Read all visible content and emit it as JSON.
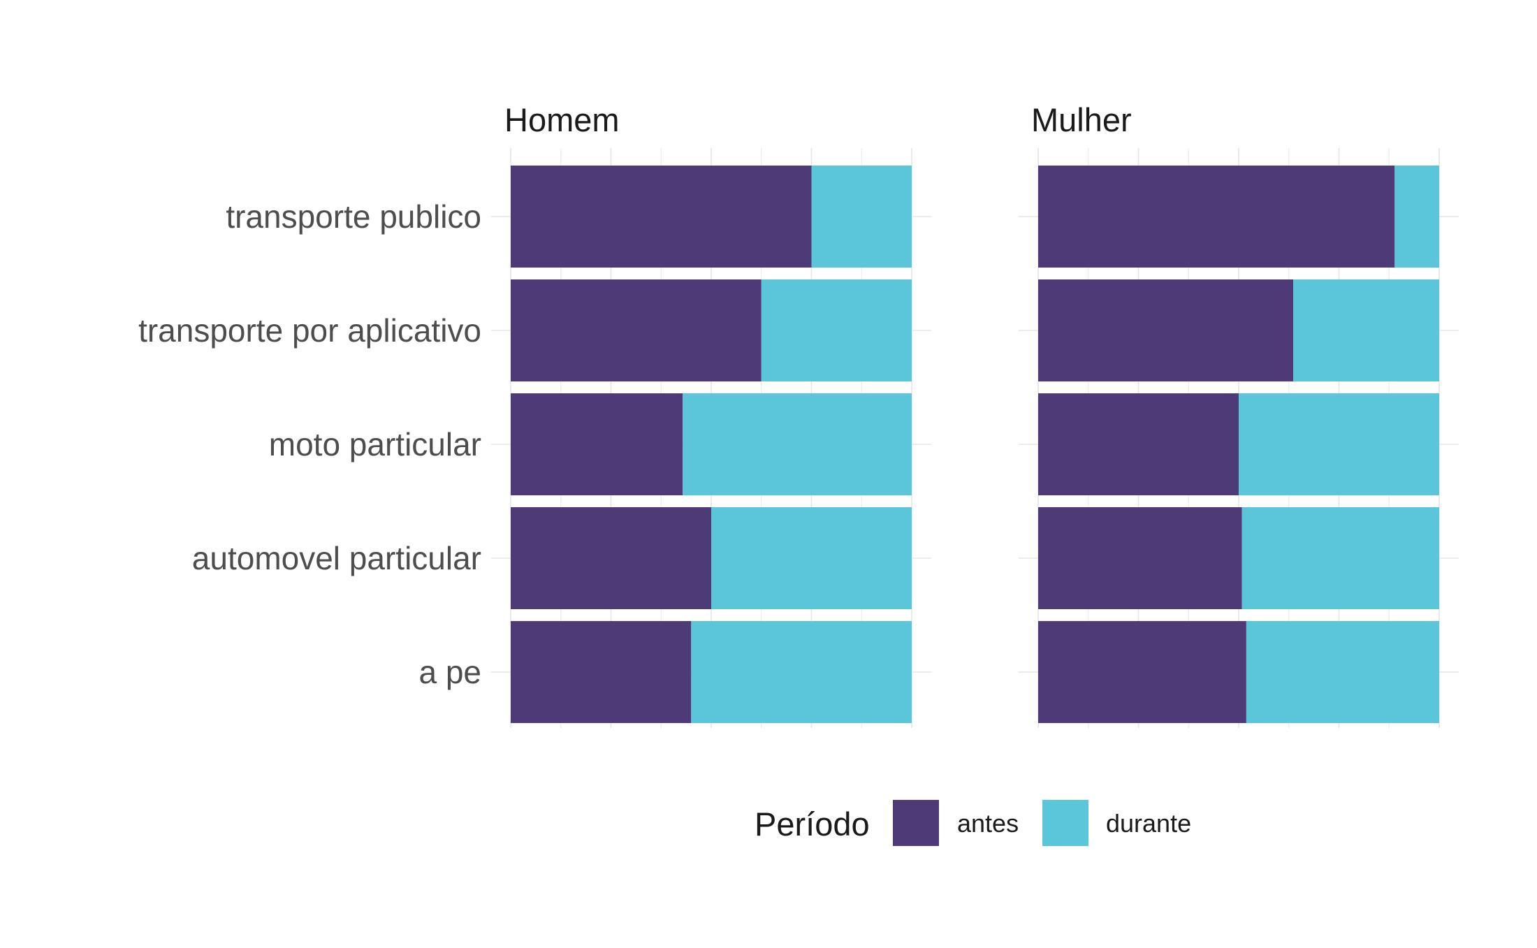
{
  "chart_data": {
    "type": "bar",
    "orientation": "horizontal",
    "stacked": true,
    "normalized": true,
    "categories": [
      "transporte publico",
      "transporte por aplicativo",
      "moto particular",
      "automovel particular",
      "a pe"
    ],
    "facets": [
      {
        "title": "Homem",
        "series": [
          {
            "name": "antes",
            "values": [
              0.75,
              0.625,
              0.429,
              0.5,
              0.45
            ]
          },
          {
            "name": "durante",
            "values": [
              0.25,
              0.375,
              0.571,
              0.5,
              0.55
            ]
          }
        ]
      },
      {
        "title": "Mulher",
        "series": [
          {
            "name": "antes",
            "values": [
              0.889,
              0.636,
              0.5,
              0.508,
              0.519
            ]
          },
          {
            "name": "durante",
            "values": [
              0.111,
              0.364,
              0.5,
              0.492,
              0.481
            ]
          }
        ]
      }
    ],
    "xlim": [
      0,
      1
    ],
    "grid": true,
    "x_tick_labels_shown": false,
    "legend": {
      "title": "Período",
      "position": "bottom",
      "entries": [
        {
          "label": "antes",
          "color": "#4e3a76"
        },
        {
          "label": "durante",
          "color": "#5bc5d9"
        }
      ]
    }
  }
}
